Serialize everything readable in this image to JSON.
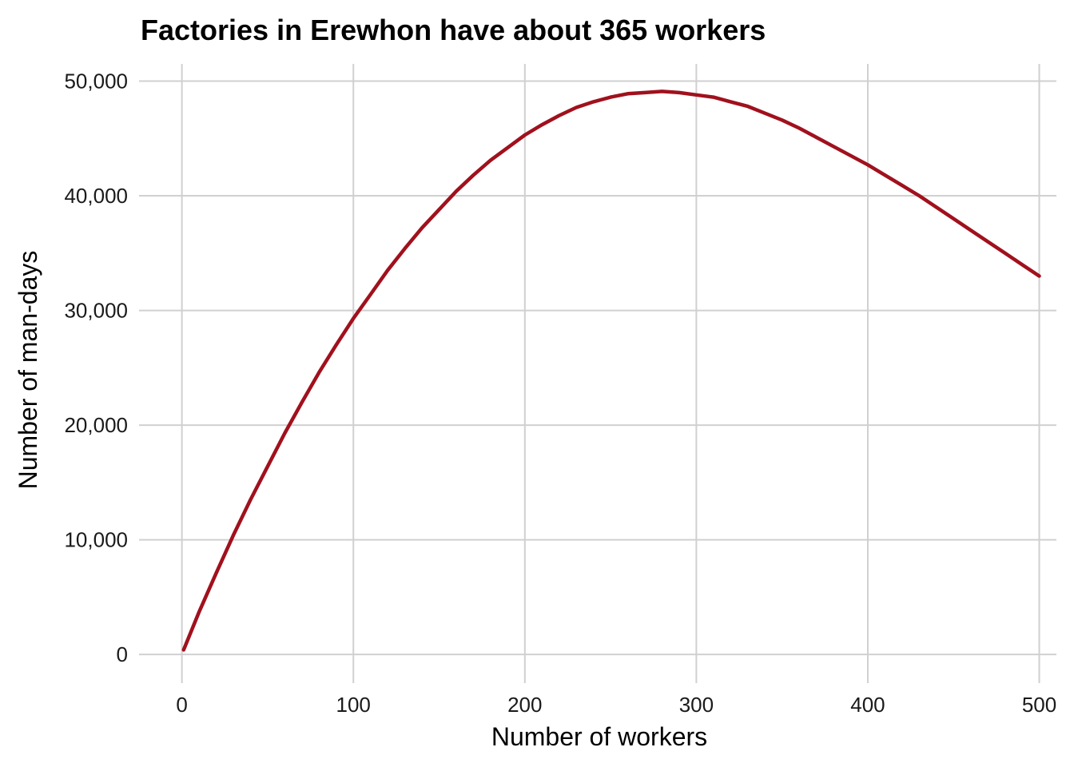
{
  "chart_data": {
    "type": "line",
    "title": "Factories in Erewhon have about 365 workers",
    "xlabel": "Number of workers",
    "ylabel": "Number of man-days",
    "xlim": [
      -25,
      510
    ],
    "ylim": [
      -2500,
      51500
    ],
    "x_ticks": [
      0,
      100,
      200,
      300,
      400,
      500
    ],
    "y_ticks": [
      0,
      10000,
      20000,
      30000,
      40000,
      50000
    ],
    "x_tick_labels": [
      "0",
      "100",
      "200",
      "300",
      "400",
      "500"
    ],
    "y_tick_labels": [
      "0",
      "10,000",
      "20,000",
      "30,000",
      "40,000",
      "50,000"
    ],
    "grid": true,
    "legend": "none",
    "series": [
      {
        "color": "#A0111D",
        "x": [
          1,
          10,
          20,
          30,
          40,
          50,
          60,
          70,
          80,
          90,
          100,
          110,
          120,
          130,
          140,
          150,
          160,
          170,
          180,
          190,
          200,
          210,
          220,
          230,
          240,
          250,
          260,
          270,
          280,
          290,
          300,
          310,
          320,
          330,
          340,
          350,
          360,
          365,
          370,
          380,
          390,
          400,
          410,
          420,
          430,
          440,
          450,
          460,
          470,
          480,
          490,
          500
        ],
        "values": [
          400,
          3700,
          7100,
          10400,
          13500,
          16400,
          19300,
          22000,
          24600,
          27000,
          29300,
          31400,
          33500,
          35400,
          37200,
          38800,
          40400,
          41800,
          43100,
          44200,
          45300,
          46200,
          47000,
          47700,
          48200,
          48600,
          48900,
          49000,
          49100,
          49000,
          48800,
          48600,
          48200,
          47800,
          47200,
          46600,
          45900,
          45500,
          45100,
          44300,
          43500,
          42700,
          41800,
          40900,
          40000,
          39000,
          38000,
          37000,
          36000,
          35000,
          34000,
          33000
        ]
      }
    ]
  }
}
